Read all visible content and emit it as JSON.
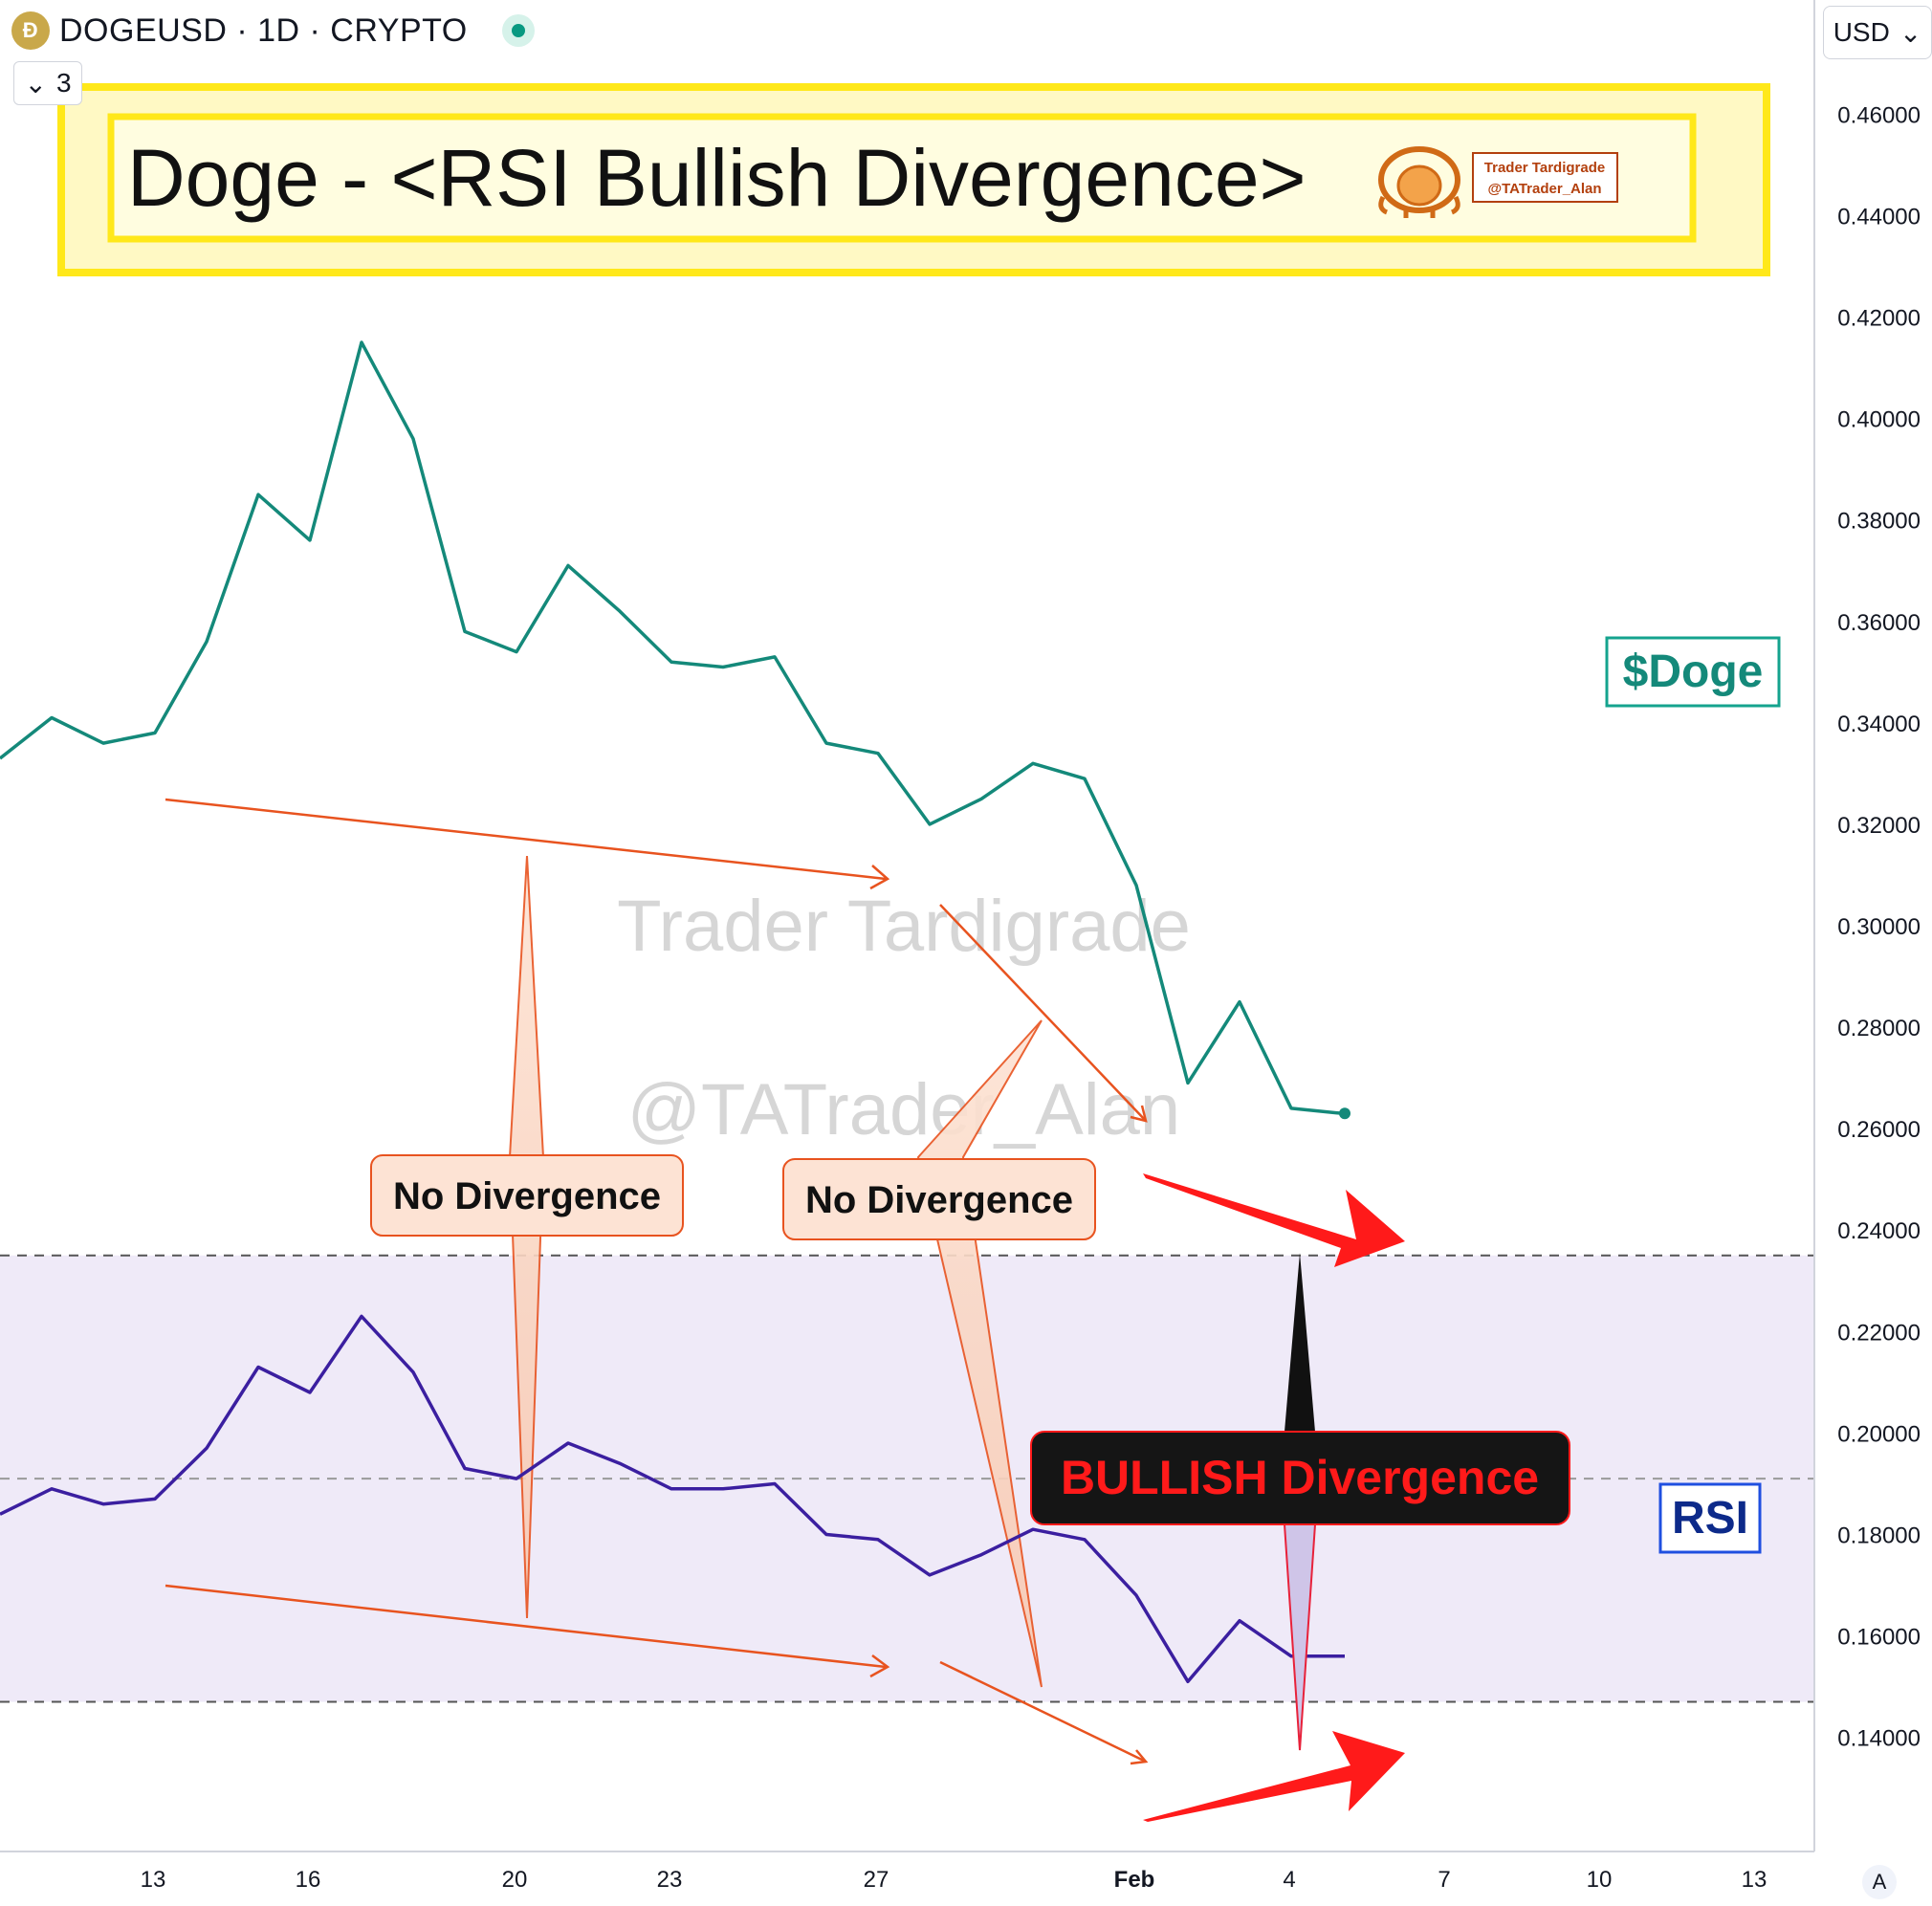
{
  "header": {
    "symbol": "DOGEUSD · 1D · CRYPTO",
    "collapse_count": "3",
    "currency": "USD",
    "auto_scale": "A"
  },
  "banner": {
    "title": "Doge - <RSI Bullish Divergence>",
    "logo_line1": "Trader Tardigrade",
    "logo_line2": "@TATrader_Alan"
  },
  "watermark": {
    "line1": "Trader Tardigrade",
    "line2": "@TATrader_Alan"
  },
  "labels": {
    "doge": "$Doge",
    "rsi": "RSI",
    "no_div_1": "No Divergence",
    "no_div_2": "No Divergence",
    "bullish": "BULLISH Divergence"
  },
  "colors": {
    "price": "#14897a",
    "rsi": "#3b1fa0",
    "annotation": "#e8531f",
    "banner_fill": "#fff9c4",
    "rsi_band": "#efeaf8",
    "bullish_text": "#ff1a1a"
  },
  "chart_data": {
    "type": "line",
    "x_ticks": [
      "13",
      "16",
      "20",
      "23",
      "27",
      "Feb",
      "4",
      "7",
      "10",
      "13"
    ],
    "y_ticks": [
      "0.14000",
      "0.16000",
      "0.18000",
      "0.20000",
      "0.22000",
      "0.24000",
      "0.26000",
      "0.28000",
      "0.30000",
      "0.32000",
      "0.34000",
      "0.36000",
      "0.38000",
      "0.40000",
      "0.42000",
      "0.44000",
      "0.46000"
    ],
    "ylim": [
      0.1175,
      0.4825
    ],
    "x_dates": [
      "Jan 10",
      "Jan 11",
      "Jan 12",
      "Jan 13",
      "Jan 14",
      "Jan 15",
      "Jan 16",
      "Jan 17",
      "Jan 18",
      "Jan 19",
      "Jan 20",
      "Jan 21",
      "Jan 22",
      "Jan 23",
      "Jan 24",
      "Jan 25",
      "Jan 26",
      "Jan 27",
      "Jan 28",
      "Jan 29",
      "Jan 30",
      "Jan 31",
      "Feb 1",
      "Feb 2",
      "Feb 3",
      "Feb 4",
      "Feb 5"
    ],
    "series": [
      {
        "values": [
          0.333,
          0.341,
          0.336,
          0.338,
          0.356,
          0.385,
          0.376,
          0.415,
          0.396,
          0.358,
          0.354,
          0.371,
          0.362,
          0.352,
          0.351,
          0.353,
          0.336,
          0.334,
          0.32,
          0.325,
          0.332,
          0.329,
          0.308,
          0.269,
          0.285,
          0.264,
          0.263
        ]
      }
    ],
    "rsi_series": [
      {
        "values": [
          0.184,
          0.189,
          0.186,
          0.187,
          0.197,
          0.213,
          0.208,
          0.223,
          0.212,
          0.193,
          0.191,
          0.198,
          0.194,
          0.189,
          0.189,
          0.19,
          0.18,
          0.179,
          0.172,
          0.176,
          0.181,
          0.179,
          0.168,
          0.151,
          0.163,
          0.156,
          0.156
        ]
      }
    ],
    "rsi_band": [
      0.147,
      0.235
    ],
    "rsi_midline": 0.191
  }
}
